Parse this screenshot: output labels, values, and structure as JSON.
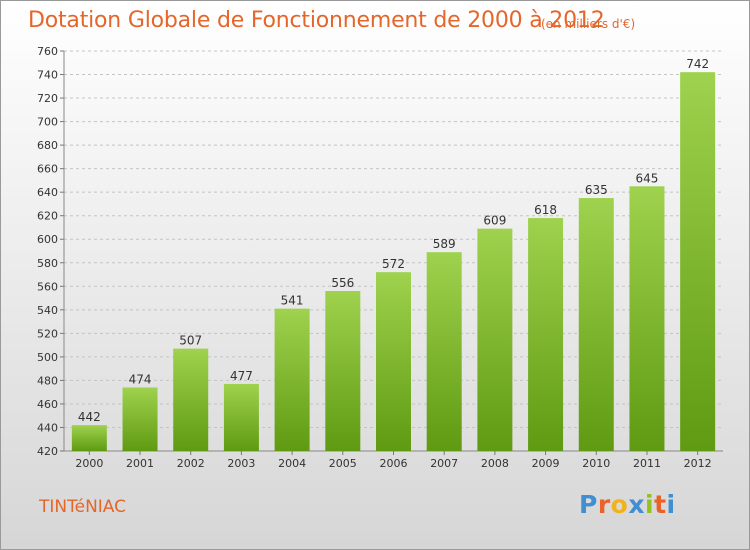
{
  "title": "Dotation Globale de Fonctionnement de 2000 à 2012",
  "subtitle": "(en milliers d'€)",
  "commune": "TINTéNIAC",
  "logo": {
    "text": "Proxiti",
    "letters": [
      {
        "char": "P",
        "color": "#3f8fd2"
      },
      {
        "char": "r",
        "color": "#e8622a"
      },
      {
        "char": "o",
        "color": "#f2b21b"
      },
      {
        "char": "x",
        "color": "#3f8fd2"
      },
      {
        "char": "i",
        "color": "#8fc31f"
      },
      {
        "char": "t",
        "color": "#e8622a"
      },
      {
        "char": "i",
        "color": "#3f8fd2"
      }
    ]
  },
  "colors": {
    "accent": "#e5662a",
    "bar_top": "#9fd24e",
    "bar_bottom": "#5f9a12",
    "grid": "#c4c4c4",
    "axis_text": "#333333"
  },
  "chart_data": {
    "type": "bar",
    "title": "Dotation Globale de Fonctionnement de 2000 à 2012",
    "subtitle": "(en milliers d'€)",
    "xlabel": "",
    "ylabel": "",
    "categories": [
      "2000",
      "2001",
      "2002",
      "2003",
      "2004",
      "2005",
      "2006",
      "2007",
      "2008",
      "2009",
      "2010",
      "2011",
      "2012"
    ],
    "values": [
      442,
      474,
      507,
      477,
      541,
      556,
      572,
      589,
      609,
      618,
      635,
      645,
      742
    ],
    "ylim": [
      420,
      760
    ],
    "yticks": [
      420,
      440,
      460,
      480,
      500,
      520,
      540,
      560,
      580,
      600,
      620,
      640,
      660,
      680,
      700,
      720,
      740,
      760
    ],
    "grid": true,
    "data_labels": true
  }
}
